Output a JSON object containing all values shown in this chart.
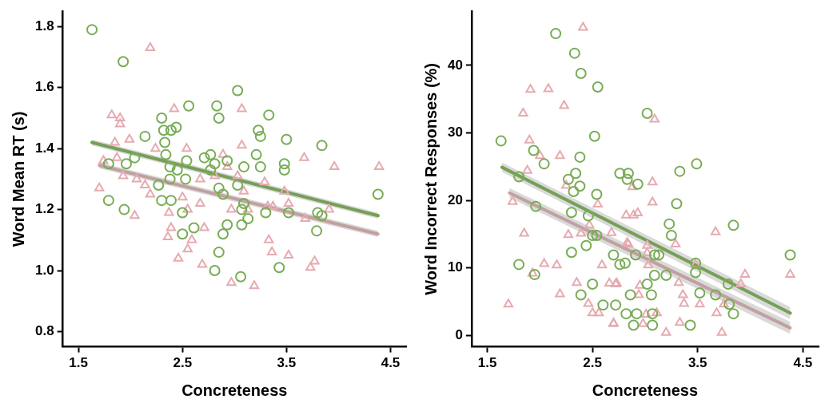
{
  "chart_data": [
    {
      "type": "scatter",
      "xlabel": "Concreteness",
      "ylabel": "Word Mean RT (s)",
      "xlim": [
        1.35,
        4.65
      ],
      "xticks": [
        1.5,
        2.5,
        3.5,
        4.5
      ],
      "ylim": [
        0.75,
        1.85
      ],
      "yticks": [
        {
          "value": 0.8,
          "label": "0.8"
        },
        {
          "value": 1,
          "label": "1.0"
        },
        {
          "value": 1.2,
          "label": "1.2"
        },
        {
          "value": 1.4,
          "label": "1.4"
        },
        {
          "value": 1.6,
          "label": "1.6"
        },
        {
          "value": 1.8,
          "label": "1.8"
        }
      ],
      "grid": false,
      "legend": false,
      "series": [
        {
          "type": "scatter",
          "marker": "circle",
          "color": "#78ac55",
          "x": [
            1.63,
            1.93,
            3.03,
            2.56,
            2.83,
            2.85,
            2.3,
            2.32,
            2.39,
            2.44,
            2.14,
            2.33,
            2.34,
            2.04,
            1.96,
            1.79,
            2.38,
            2.54,
            2.45,
            2.71,
            2.77,
            2.81,
            2.77,
            2.38,
            2.53,
            2.27,
            2.85,
            2.89,
            3.03,
            1.79,
            2.3,
            2.39,
            1.94,
            2.5,
            2.93,
            2.89,
            2.61,
            2.5,
            3.07,
            2.85,
            2.81,
            3.06,
            2.93,
            3.33,
            3.23,
            3.25,
            3.5,
            3.84,
            3.21,
            3.25,
            3.48,
            3.48,
            3.09,
            3.09,
            3.07,
            3.13,
            3.3,
            3.52,
            3.8,
            3.84,
            3.79,
            3.43,
            4.38
          ],
          "values": [
            1.79,
            1.685,
            1.59,
            1.54,
            1.54,
            1.5,
            1.5,
            1.46,
            1.46,
            1.47,
            1.44,
            1.42,
            1.38,
            1.37,
            1.35,
            1.35,
            1.34,
            1.36,
            1.33,
            1.37,
            1.38,
            1.35,
            1.33,
            1.3,
            1.3,
            1.28,
            1.27,
            1.25,
            1.28,
            1.23,
            1.23,
            1.23,
            1.2,
            1.19,
            1.15,
            1.12,
            1.14,
            1.12,
            1.15,
            1.06,
            1.0,
            0.98,
            1.36,
            1.51,
            1.46,
            1.44,
            1.43,
            1.41,
            1.38,
            1.34,
            1.35,
            1.33,
            1.34,
            1.22,
            1.2,
            1.17,
            1.19,
            1.19,
            1.19,
            1.18,
            1.13,
            1.01,
            1.25
          ]
        },
        {
          "type": "scatter",
          "marker": "triangle",
          "color": "#e6aab0",
          "x": [
            2.19,
            1.82,
            1.9,
            1.9,
            2.42,
            1.85,
            1.99,
            2.24,
            2.54,
            1.74,
            1.87,
            1.93,
            2.06,
            2.14,
            2.19,
            1.7,
            2.04,
            2.5,
            2.37,
            2.55,
            2.67,
            2.71,
            2.39,
            2.36,
            2.59,
            2.55,
            2.46,
            2.69,
            2.97,
            2.89,
            3.07,
            3.07,
            2.67,
            2.81,
            2.97,
            2.93,
            3.03,
            3.29,
            3.67,
            3.96,
            4.39,
            3.48,
            3.52,
            3.09,
            3.37,
            3.32,
            3.13,
            3.68,
            3.91,
            3.33,
            3.36,
            3.52,
            3.77,
            3.73,
            3.19
          ],
          "values": [
            1.73,
            1.51,
            1.5,
            1.48,
            1.53,
            1.42,
            1.43,
            1.4,
            1.4,
            1.36,
            1.37,
            1.31,
            1.3,
            1.28,
            1.25,
            1.27,
            1.18,
            1.24,
            1.19,
            1.2,
            1.22,
            1.14,
            1.14,
            1.11,
            1.1,
            1.07,
            1.04,
            1.02,
            0.96,
            1.38,
            1.53,
            1.41,
            1.3,
            1.31,
            1.2,
            1.34,
            1.31,
            1.29,
            1.37,
            1.34,
            1.34,
            1.26,
            1.22,
            1.26,
            1.21,
            1.21,
            1.2,
            1.17,
            1.2,
            1.1,
            1.06,
            1.05,
            1.03,
            1.01,
            0.95
          ]
        },
        {
          "type": "line",
          "marker": "none",
          "color": "#dba6a6",
          "x": [
            1.7,
            4.38
          ],
          "values": [
            1.345,
            1.12
          ],
          "lower": [
            1.335,
            1.11
          ],
          "upper": [
            1.355,
            1.13
          ]
        },
        {
          "type": "line",
          "marker": "none",
          "color": "#66a536",
          "x": [
            1.63,
            4.38
          ],
          "values": [
            1.42,
            1.18
          ],
          "lower": [
            1.41,
            1.17
          ],
          "upper": [
            1.43,
            1.19
          ]
        }
      ]
    },
    {
      "type": "scatter",
      "xlabel": "Concreteness",
      "ylabel": "Word Incorrect Responses (%)",
      "xlim": [
        1.35,
        4.65
      ],
      "xticks": [
        1.5,
        2.5,
        3.5,
        4.5
      ],
      "ylim": [
        -1.7,
        48
      ],
      "yticks": [
        0,
        10,
        20,
        30,
        40
      ],
      "grid": false,
      "legend": false,
      "series": [
        {
          "type": "scatter",
          "marker": "circle",
          "color": "#78ac55",
          "x": [
            2.15,
            2.33,
            2.39,
            2.55,
            2.52,
            1.63,
            1.94,
            2.04,
            2.38,
            1.8,
            2.27,
            2.34,
            2.38,
            2.32,
            2.54,
            1.96,
            2.3,
            2.46,
            2.5,
            2.54,
            2.44,
            2.3,
            1.8,
            1.95,
            2.5,
            2.39,
            2.6,
            2.72,
            2.7,
            2.76,
            2.81,
            2.76,
            2.84,
            2.83,
            2.86,
            2.82,
            2.89,
            3.02,
            2.93,
            3.49,
            3.33,
            3.3,
            3.84,
            3.23,
            3.25,
            2.91,
            3.09,
            3.13,
            3.09,
            3.2,
            3.02,
            3.48,
            3.48,
            3.79,
            3.52,
            3.06,
            3.67,
            3.8,
            3.84,
            2.92,
            3.07,
            3.07,
            3.43,
            4.38
          ],
          "values": [
            44.7,
            41.8,
            38.8,
            36.8,
            29.5,
            28.8,
            27.4,
            25.4,
            26.4,
            23.5,
            23.1,
            24.0,
            22.1,
            21.3,
            20.9,
            19.1,
            18.2,
            17.7,
            14.8,
            14.8,
            13.3,
            12.3,
            10.5,
            9.0,
            7.6,
            6.0,
            4.5,
            4.5,
            11.9,
            10.5,
            10.7,
            24.0,
            24.0,
            23.1,
            6.0,
            3.2,
            1.5,
            32.9,
            22.4,
            25.4,
            24.3,
            19.5,
            16.3,
            16.5,
            14.8,
            11.9,
            11.9,
            11.9,
            8.9,
            8.9,
            7.6,
            10.7,
            9.3,
            7.6,
            6.3,
            6.0,
            6.0,
            4.6,
            3.2,
            3.2,
            3.2,
            1.5,
            1.5,
            11.9
          ]
        },
        {
          "type": "scatter",
          "marker": "triangle",
          "color": "#e6aab0",
          "x": [
            2.41,
            1.91,
            2.08,
            2.23,
            1.84,
            1.9,
            2.0,
            2.19,
            1.88,
            1.74,
            2.25,
            2.55,
            2.47,
            2.82,
            2.89,
            1.85,
            2.27,
            2.39,
            2.68,
            2.84,
            2.59,
            2.04,
            2.16,
            1.93,
            2.35,
            2.66,
            2.73,
            2.19,
            2.46,
            2.5,
            2.56,
            1.7,
            2.7,
            2.88,
            3.09,
            3.07,
            3.07,
            2.93,
            3.67,
            3.29,
            2.83,
            3.02,
            3.02,
            3.03,
            3.48,
            3.95,
            4.38,
            3.91,
            3.32,
            2.95,
            2.72,
            2.94,
            3.36,
            3.37,
            3.52,
            3.75,
            3.68,
            3.11,
            3.01,
            2.98,
            3.33,
            2.7,
            3.2,
            3.73
          ],
          "values": [
            45.6,
            36.4,
            36.5,
            34.0,
            32.9,
            28.9,
            26.6,
            26.6,
            24.4,
            19.8,
            22.2,
            19.4,
            16.3,
            17.8,
            17.8,
            15.1,
            14.9,
            15.1,
            15.2,
            13.5,
            10.4,
            10.6,
            10.4,
            9.2,
            7.8,
            7.7,
            7.7,
            6.1,
            4.7,
            3.3,
            3.3,
            4.6,
            1.8,
            22.0,
            32.0,
            22.7,
            19.7,
            18.1,
            15.3,
            13.5,
            13.7,
            13.3,
            12.2,
            10.4,
            10.5,
            9.0,
            9.0,
            7.6,
            7.8,
            7.4,
            7.6,
            6.0,
            6.0,
            4.7,
            4.6,
            4.6,
            3.3,
            3.3,
            3.1,
            1.7,
            1.9,
            1.7,
            0.4,
            0.4
          ]
        },
        {
          "type": "line",
          "marker": "none",
          "color": "#dba6a6",
          "x": [
            1.71,
            4.38
          ],
          "values": [
            21.1,
            1.1
          ],
          "lower": [
            20.4,
            0.2
          ],
          "upper": [
            21.8,
            2.0
          ]
        },
        {
          "type": "line",
          "marker": "none",
          "color": "#66a536",
          "x": [
            1.64,
            4.38
          ],
          "values": [
            24.9,
            3.3
          ],
          "lower": [
            24.2,
            2.4
          ],
          "upper": [
            25.6,
            4.2
          ]
        }
      ]
    }
  ]
}
